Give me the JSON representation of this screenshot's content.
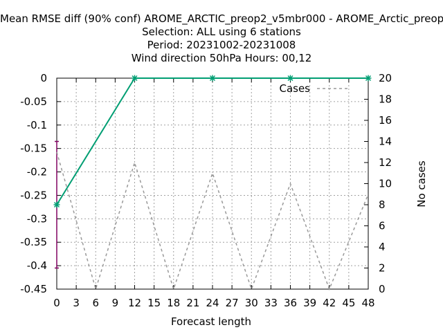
{
  "chart_data": {
    "type": "line",
    "title_lines": [
      "Mean RMSE diff (90% conf) AROME_ARCTIC_preop2_v5mbr000 - AROME_Arctic_preop",
      "Selection: ALL using     6 stations",
      "Period: 20231002-20231008",
      "Wind direction 50hPa   Hours:  00,12"
    ],
    "xlabel": "Forecast length",
    "ylabel_left": "",
    "ylabel_right": "No cases",
    "xlim": [
      0,
      48
    ],
    "ylim_left": [
      -0.45,
      0
    ],
    "ylim_right": [
      0,
      20
    ],
    "x_ticks": [
      0,
      3,
      6,
      9,
      12,
      15,
      18,
      21,
      24,
      27,
      30,
      33,
      36,
      39,
      42,
      45,
      48
    ],
    "y_ticks_left": [
      0,
      -0.05,
      -0.1,
      -0.15,
      -0.2,
      -0.25,
      -0.3,
      -0.35,
      -0.4,
      -0.45
    ],
    "y_ticks_right": [
      20,
      18,
      16,
      14,
      12,
      10,
      8,
      6,
      4,
      2,
      0
    ],
    "grid": true,
    "legend_position": "top-right",
    "series": [
      {
        "name": "",
        "axis": "left",
        "color": "#009e73",
        "x": [
          0,
          12,
          24,
          36,
          48
        ],
        "y": [
          -0.27,
          0,
          0,
          0,
          0
        ]
      },
      {
        "name": "Cases",
        "axis": "right",
        "color": "#999999",
        "dashed": true,
        "x": [
          0,
          6,
          12,
          18,
          24,
          30,
          36,
          42,
          48
        ],
        "y": [
          13,
          0,
          12,
          0,
          11,
          0,
          10,
          0,
          9
        ]
      }
    ],
    "error_bars": [
      {
        "x": 0,
        "low": -0.405,
        "high": -0.135,
        "color": "#800060"
      }
    ]
  }
}
